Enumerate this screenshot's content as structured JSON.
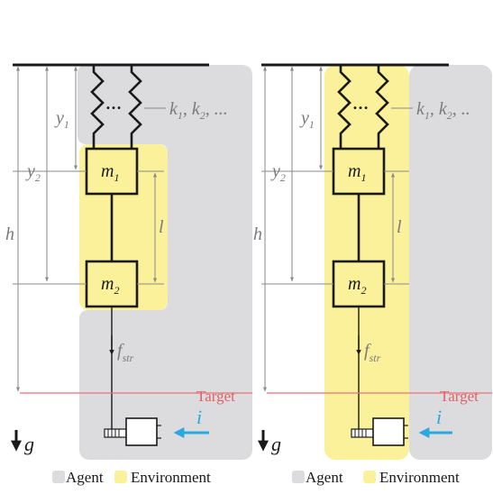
{
  "panels": [
    {
      "id": "left",
      "labels": {
        "springs": "k",
        "springs_sub1": "1",
        "springs_sub2": "2",
        "springs_tail": ", ...",
        "y1": "y",
        "y1_sub": "1",
        "y2": "y",
        "y2_sub": "2",
        "h": "h",
        "m1": "m",
        "m1_sub": "1",
        "m2": "m",
        "m2_sub": "2",
        "l": "l",
        "f": "f",
        "f_sub": "str",
        "target": "Target",
        "i": "i",
        "g": "g"
      }
    },
    {
      "id": "right",
      "labels": {
        "springs": "k",
        "springs_sub1": "1",
        "springs_sub2": "2",
        "springs_tail": ", ..",
        "y1": "y",
        "y1_sub": "1",
        "y2": "y",
        "y2_sub": "2",
        "h": "h",
        "m1": "m",
        "m1_sub": "1",
        "m2": "m",
        "m2_sub": "2",
        "l": "l",
        "f": "f",
        "f_sub": "str",
        "target": "Target",
        "i": "i",
        "g": "g"
      }
    }
  ],
  "legend": {
    "agent": "Agent",
    "environment": "Environment"
  },
  "colors": {
    "agent": "#dcdcde",
    "environment": "#fbf19a",
    "target_line": "#e8717a",
    "target_text": "#e0606c",
    "current_arrow": "#2aa8e0",
    "dimension": "#8a8a8a",
    "ink": "#1a1a1a",
    "label_gray": "#7a7a7a"
  }
}
